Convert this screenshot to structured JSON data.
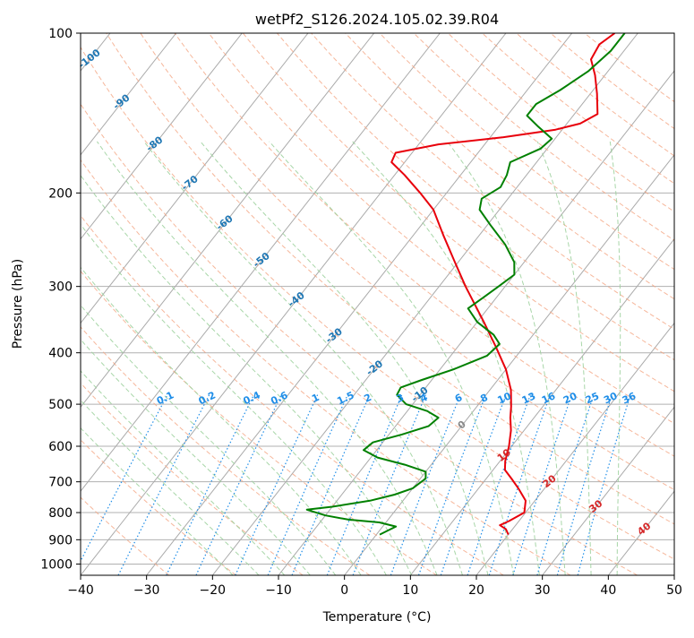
{
  "chart_data": {
    "type": "line",
    "subtype": "skew-t log-p",
    "title": "wetPf2_S126.2024.105.02.39.R04",
    "xlabel": "Temperature (°C)",
    "ylabel": "Pressure (hPa)",
    "xlim": [
      -40,
      50
    ],
    "ylim": [
      1050,
      100
    ],
    "y_scale": "log",
    "grid": true,
    "x_ticks": [
      -40,
      -30,
      -20,
      -10,
      0,
      10,
      20,
      30,
      40,
      50
    ],
    "y_ticks": [
      100,
      200,
      300,
      400,
      500,
      600,
      700,
      800,
      900,
      1000
    ],
    "colors": {
      "temperature": "#e8000b",
      "dewpoint": "#008000",
      "dry_adiabat": "#f4a582",
      "moist_adiabat": "#9fd29f",
      "mixing_ratio": "#1f8ee8",
      "isotherm": "#999999",
      "dry_label": "#1f77b4",
      "moist_label": "#d62728",
      "mixing_label": "#1f8ee8",
      "zero_label": "#888888"
    },
    "series": [
      {
        "role": "temperature",
        "points": [
          {
            "p": 880,
            "t": 20.0
          },
          {
            "p": 860,
            "t": 19.0
          },
          {
            "p": 845,
            "t": 17.6
          },
          {
            "p": 830,
            "t": 18.5
          },
          {
            "p": 800,
            "t": 19.8
          },
          {
            "p": 760,
            "t": 18.6
          },
          {
            "p": 720,
            "t": 16.0
          },
          {
            "p": 690,
            "t": 13.8
          },
          {
            "p": 665,
            "t": 11.8
          },
          {
            "p": 640,
            "t": 10.8
          },
          {
            "p": 600,
            "t": 9.6
          },
          {
            "p": 560,
            "t": 8.0
          },
          {
            "p": 530,
            "t": 6.4
          },
          {
            "p": 505,
            "t": 5.2
          },
          {
            "p": 470,
            "t": 3.2
          },
          {
            "p": 430,
            "t": 0.0
          },
          {
            "p": 390,
            "t": -4.2
          },
          {
            "p": 350,
            "t": -9.0
          },
          {
            "p": 300,
            "t": -16.0
          },
          {
            "p": 270,
            "t": -20.5
          },
          {
            "p": 240,
            "t": -25.5
          },
          {
            "p": 215,
            "t": -30.0
          },
          {
            "p": 200,
            "t": -34.0
          },
          {
            "p": 185,
            "t": -38.5
          },
          {
            "p": 175,
            "t": -42.0
          },
          {
            "p": 168,
            "t": -42.5
          },
          {
            "p": 162,
            "t": -37.0
          },
          {
            "p": 157,
            "t": -28.0
          },
          {
            "p": 152,
            "t": -21.0
          },
          {
            "p": 148,
            "t": -18.0
          },
          {
            "p": 142,
            "t": -16.5
          },
          {
            "p": 130,
            "t": -19.0
          },
          {
            "p": 120,
            "t": -21.5
          },
          {
            "p": 112,
            "t": -24.0
          },
          {
            "p": 105,
            "t": -24.5
          },
          {
            "p": 100,
            "t": -23.5
          }
        ]
      },
      {
        "role": "dewpoint",
        "points": [
          {
            "p": 880,
            "t": 0.5
          },
          {
            "p": 870,
            "t": 1.0
          },
          {
            "p": 850,
            "t": 2.0
          },
          {
            "p": 835,
            "t": -1.0
          },
          {
            "p": 825,
            "t": -6.0
          },
          {
            "p": 810,
            "t": -10.0
          },
          {
            "p": 790,
            "t": -13.5
          },
          {
            "p": 780,
            "t": -10.0
          },
          {
            "p": 760,
            "t": -5.0
          },
          {
            "p": 740,
            "t": -2.0
          },
          {
            "p": 720,
            "t": 0.0
          },
          {
            "p": 690,
            "t": 0.8
          },
          {
            "p": 670,
            "t": 0.0
          },
          {
            "p": 650,
            "t": -4.0
          },
          {
            "p": 630,
            "t": -9.0
          },
          {
            "p": 610,
            "t": -12.0
          },
          {
            "p": 590,
            "t": -11.5
          },
          {
            "p": 570,
            "t": -8.0
          },
          {
            "p": 550,
            "t": -5.0
          },
          {
            "p": 530,
            "t": -4.5
          },
          {
            "p": 515,
            "t": -7.0
          },
          {
            "p": 500,
            "t": -11.0
          },
          {
            "p": 480,
            "t": -13.5
          },
          {
            "p": 465,
            "t": -13.8
          },
          {
            "p": 450,
            "t": -11.5
          },
          {
            "p": 430,
            "t": -8.0
          },
          {
            "p": 405,
            "t": -4.5
          },
          {
            "p": 385,
            "t": -4.0
          },
          {
            "p": 370,
            "t": -6.0
          },
          {
            "p": 350,
            "t": -10.0
          },
          {
            "p": 330,
            "t": -13.0
          },
          {
            "p": 315,
            "t": -12.0
          },
          {
            "p": 300,
            "t": -11.0
          },
          {
            "p": 285,
            "t": -10.0
          },
          {
            "p": 270,
            "t": -11.5
          },
          {
            "p": 250,
            "t": -15.0
          },
          {
            "p": 230,
            "t": -19.5
          },
          {
            "p": 215,
            "t": -23.0
          },
          {
            "p": 205,
            "t": -24.0
          },
          {
            "p": 195,
            "t": -22.5
          },
          {
            "p": 185,
            "t": -23.0
          },
          {
            "p": 175,
            "t": -24.0
          },
          {
            "p": 165,
            "t": -21.0
          },
          {
            "p": 158,
            "t": -20.5
          },
          {
            "p": 150,
            "t": -24.0
          },
          {
            "p": 143,
            "t": -27.0
          },
          {
            "p": 136,
            "t": -27.0
          },
          {
            "p": 128,
            "t": -25.0
          },
          {
            "p": 118,
            "t": -23.0
          },
          {
            "p": 108,
            "t": -22.0
          },
          {
            "p": 100,
            "t": -22.0
          }
        ]
      }
    ],
    "dry_adiabat_labels": [
      {
        "text": "-100",
        "temp_c": -100
      },
      {
        "text": "-90",
        "temp_c": -90
      },
      {
        "text": "-80",
        "temp_c": -80
      },
      {
        "text": "-70",
        "temp_c": -70
      },
      {
        "text": "-60",
        "temp_c": -60
      },
      {
        "text": "-50",
        "temp_c": -50
      },
      {
        "text": "-40",
        "temp_c": -40
      },
      {
        "text": "-30",
        "temp_c": -30
      },
      {
        "text": "-20",
        "temp_c": -20
      },
      {
        "text": "-10",
        "temp_c": -10
      }
    ],
    "moist_adiabat_labels": [
      {
        "text": "0",
        "temp_c": 0
      },
      {
        "text": "10",
        "temp_c": 10
      },
      {
        "text": "20",
        "temp_c": 20
      },
      {
        "text": "30",
        "temp_c": 30
      },
      {
        "text": "40",
        "temp_c": 40
      }
    ],
    "mixing_ratio_labels": [
      "0.1",
      "0.2",
      "0.4",
      "0.6",
      "1",
      "1.5",
      "2",
      "3",
      "4",
      "6",
      "8",
      "10",
      "13",
      "16",
      "20",
      "25",
      "30",
      "36"
    ]
  }
}
